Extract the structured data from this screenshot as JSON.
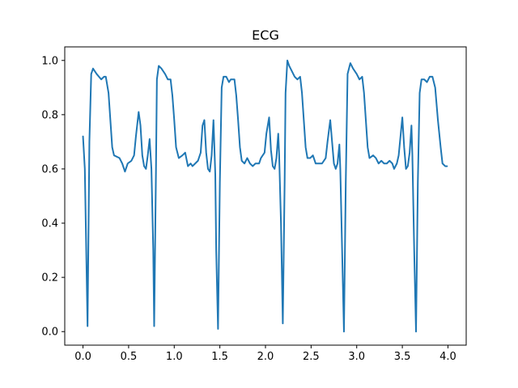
{
  "chart_data": {
    "type": "line",
    "title": "ECG",
    "xlabel": "",
    "ylabel": "",
    "xlim": [
      -0.2,
      4.2
    ],
    "ylim": [
      -0.05,
      1.05
    ],
    "grid": false,
    "legend": "none",
    "xticks": [
      0.0,
      0.5,
      1.0,
      1.5,
      2.0,
      2.5,
      3.0,
      3.5,
      4.0
    ],
    "xtick_labels": [
      "0.0",
      "0.5",
      "1.0",
      "1.5",
      "2.0",
      "2.5",
      "3.0",
      "3.5",
      "4.0"
    ],
    "yticks": [
      0.0,
      0.2,
      0.4,
      0.6,
      0.8,
      1.0
    ],
    "ytick_labels": [
      "0.0",
      "0.2",
      "0.4",
      "0.6",
      "0.8",
      "1.0"
    ],
    "series": [
      {
        "color": "#1f77b4",
        "points": [
          [
            0.0,
            0.72
          ],
          [
            0.02,
            0.6
          ],
          [
            0.05,
            0.02
          ],
          [
            0.07,
            0.7
          ],
          [
            0.09,
            0.95
          ],
          [
            0.11,
            0.97
          ],
          [
            0.15,
            0.95
          ],
          [
            0.2,
            0.93
          ],
          [
            0.23,
            0.94
          ],
          [
            0.25,
            0.94
          ],
          [
            0.28,
            0.88
          ],
          [
            0.3,
            0.78
          ],
          [
            0.32,
            0.68
          ],
          [
            0.34,
            0.65
          ],
          [
            0.4,
            0.64
          ],
          [
            0.43,
            0.62
          ],
          [
            0.46,
            0.59
          ],
          [
            0.49,
            0.62
          ],
          [
            0.53,
            0.63
          ],
          [
            0.56,
            0.65
          ],
          [
            0.58,
            0.72
          ],
          [
            0.61,
            0.81
          ],
          [
            0.63,
            0.76
          ],
          [
            0.65,
            0.65
          ],
          [
            0.67,
            0.61
          ],
          [
            0.69,
            0.6
          ],
          [
            0.71,
            0.65
          ],
          [
            0.73,
            0.71
          ],
          [
            0.75,
            0.6
          ],
          [
            0.77,
            0.3
          ],
          [
            0.78,
            0.02
          ],
          [
            0.8,
            0.6
          ],
          [
            0.81,
            0.93
          ],
          [
            0.83,
            0.98
          ],
          [
            0.86,
            0.97
          ],
          [
            0.9,
            0.95
          ],
          [
            0.93,
            0.93
          ],
          [
            0.96,
            0.93
          ],
          [
            0.98,
            0.87
          ],
          [
            1.0,
            0.78
          ],
          [
            1.02,
            0.68
          ],
          [
            1.05,
            0.64
          ],
          [
            1.09,
            0.65
          ],
          [
            1.12,
            0.66
          ],
          [
            1.15,
            0.61
          ],
          [
            1.18,
            0.62
          ],
          [
            1.2,
            0.61
          ],
          [
            1.23,
            0.62
          ],
          [
            1.26,
            0.63
          ],
          [
            1.29,
            0.66
          ],
          [
            1.31,
            0.76
          ],
          [
            1.33,
            0.78
          ],
          [
            1.35,
            0.66
          ],
          [
            1.37,
            0.6
          ],
          [
            1.39,
            0.59
          ],
          [
            1.41,
            0.65
          ],
          [
            1.43,
            0.78
          ],
          [
            1.45,
            0.58
          ],
          [
            1.46,
            0.3
          ],
          [
            1.48,
            0.01
          ],
          [
            1.5,
            0.55
          ],
          [
            1.52,
            0.9
          ],
          [
            1.54,
            0.94
          ],
          [
            1.57,
            0.94
          ],
          [
            1.6,
            0.92
          ],
          [
            1.62,
            0.93
          ],
          [
            1.66,
            0.93
          ],
          [
            1.68,
            0.87
          ],
          [
            1.7,
            0.78
          ],
          [
            1.72,
            0.68
          ],
          [
            1.74,
            0.63
          ],
          [
            1.77,
            0.62
          ],
          [
            1.8,
            0.64
          ],
          [
            1.83,
            0.62
          ],
          [
            1.86,
            0.61
          ],
          [
            1.89,
            0.62
          ],
          [
            1.93,
            0.62
          ],
          [
            1.95,
            0.64
          ],
          [
            1.99,
            0.66
          ],
          [
            2.01,
            0.73
          ],
          [
            2.04,
            0.79
          ],
          [
            2.06,
            0.67
          ],
          [
            2.08,
            0.61
          ],
          [
            2.1,
            0.6
          ],
          [
            2.12,
            0.64
          ],
          [
            2.14,
            0.73
          ],
          [
            2.15,
            0.65
          ],
          [
            2.17,
            0.4
          ],
          [
            2.19,
            0.03
          ],
          [
            2.21,
            0.55
          ],
          [
            2.22,
            0.88
          ],
          [
            2.24,
            1.0
          ],
          [
            2.26,
            0.98
          ],
          [
            2.29,
            0.96
          ],
          [
            2.32,
            0.94
          ],
          [
            2.35,
            0.93
          ],
          [
            2.38,
            0.94
          ],
          [
            2.4,
            0.88
          ],
          [
            2.42,
            0.78
          ],
          [
            2.44,
            0.68
          ],
          [
            2.46,
            0.64
          ],
          [
            2.49,
            0.64
          ],
          [
            2.52,
            0.65
          ],
          [
            2.55,
            0.62
          ],
          [
            2.58,
            0.62
          ],
          [
            2.62,
            0.62
          ],
          [
            2.66,
            0.64
          ],
          [
            2.68,
            0.7
          ],
          [
            2.71,
            0.78
          ],
          [
            2.73,
            0.7
          ],
          [
            2.75,
            0.62
          ],
          [
            2.77,
            0.6
          ],
          [
            2.79,
            0.62
          ],
          [
            2.81,
            0.69
          ],
          [
            2.82,
            0.6
          ],
          [
            2.84,
            0.3
          ],
          [
            2.86,
            0.0
          ],
          [
            2.88,
            0.55
          ],
          [
            2.9,
            0.95
          ],
          [
            2.93,
            0.99
          ],
          [
            2.96,
            0.97
          ],
          [
            3.0,
            0.95
          ],
          [
            3.03,
            0.93
          ],
          [
            3.06,
            0.94
          ],
          [
            3.08,
            0.88
          ],
          [
            3.1,
            0.78
          ],
          [
            3.12,
            0.68
          ],
          [
            3.14,
            0.64
          ],
          [
            3.18,
            0.65
          ],
          [
            3.21,
            0.64
          ],
          [
            3.24,
            0.62
          ],
          [
            3.27,
            0.63
          ],
          [
            3.3,
            0.62
          ],
          [
            3.33,
            0.62
          ],
          [
            3.36,
            0.63
          ],
          [
            3.39,
            0.62
          ],
          [
            3.41,
            0.6
          ],
          [
            3.44,
            0.62
          ],
          [
            3.46,
            0.65
          ],
          [
            3.48,
            0.72
          ],
          [
            3.5,
            0.79
          ],
          [
            3.52,
            0.68
          ],
          [
            3.54,
            0.6
          ],
          [
            3.56,
            0.61
          ],
          [
            3.58,
            0.66
          ],
          [
            3.6,
            0.76
          ],
          [
            3.61,
            0.65
          ],
          [
            3.63,
            0.3
          ],
          [
            3.65,
            0.0
          ],
          [
            3.67,
            0.55
          ],
          [
            3.69,
            0.88
          ],
          [
            3.71,
            0.93
          ],
          [
            3.74,
            0.93
          ],
          [
            3.77,
            0.92
          ],
          [
            3.8,
            0.94
          ],
          [
            3.83,
            0.94
          ],
          [
            3.86,
            0.9
          ],
          [
            3.89,
            0.78
          ],
          [
            3.92,
            0.68
          ],
          [
            3.94,
            0.62
          ],
          [
            3.97,
            0.61
          ],
          [
            3.99,
            0.61
          ]
        ]
      }
    ]
  }
}
